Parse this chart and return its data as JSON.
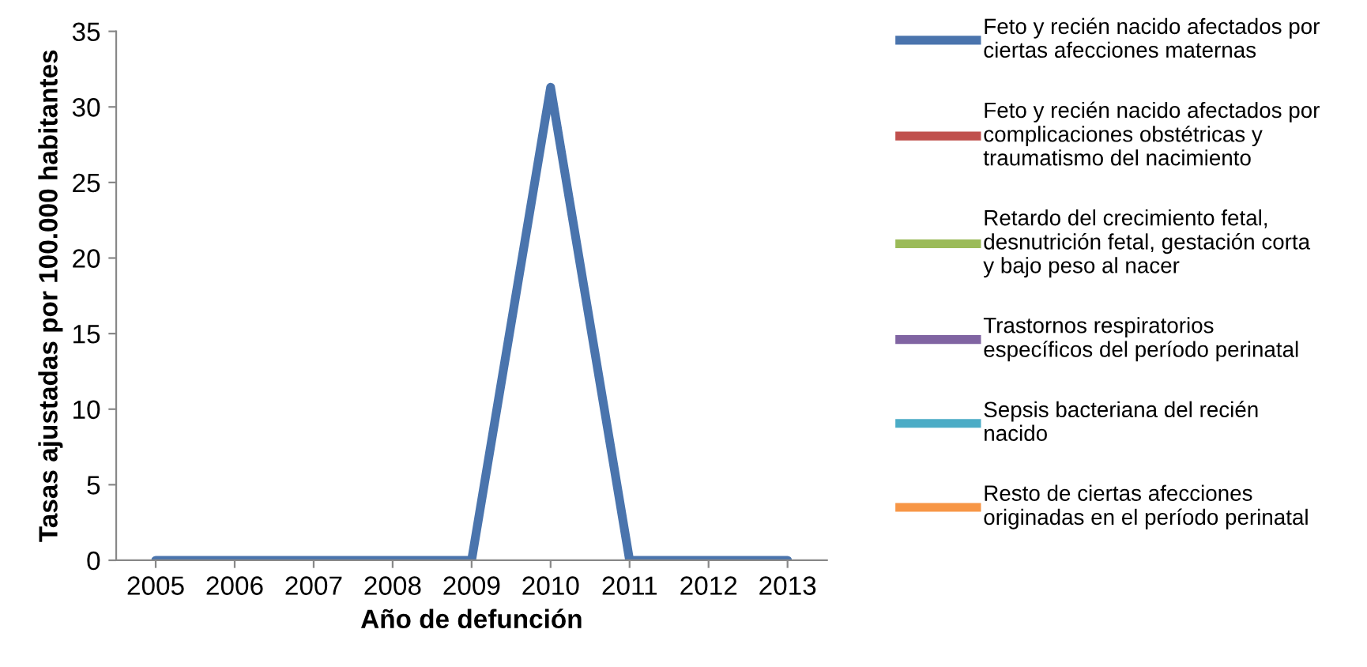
{
  "chart_data": {
    "type": "line",
    "xlabel": "Año de defunción",
    "ylabel": "Tasas ajustadas por 100.000 habitantes",
    "categories": [
      "2005",
      "2006",
      "2007",
      "2008",
      "2009",
      "2010",
      "2011",
      "2012",
      "2013"
    ],
    "ylim": [
      0,
      35
    ],
    "yticks": [
      0,
      5,
      10,
      15,
      20,
      25,
      30,
      35
    ],
    "grid": false,
    "legend": "right",
    "marker": "none",
    "line_style": "solid",
    "series": [
      {
        "name": "Feto y recién nacido afectados por\nciertas afecciones maternas",
        "color": "#4a74ad",
        "values": [
          0,
          0,
          0,
          0,
          0,
          31.3,
          0,
          0,
          0
        ]
      },
      {
        "name": "Feto y recién nacido afectados por\ncomplicaciones obstétricas y\ntraumatismo del nacimiento",
        "color": "#c0504d",
        "values": [
          null,
          null,
          null,
          null,
          null,
          null,
          null,
          null,
          null
        ]
      },
      {
        "name": "Retardo del crecimiento fetal,\ndesnutrición fetal, gestación corta\ny bajo peso al nacer",
        "color": "#9bbb59",
        "values": [
          null,
          null,
          null,
          null,
          null,
          null,
          null,
          null,
          null
        ]
      },
      {
        "name": "Trastornos respiratorios\nespecíficos del período perinatal",
        "color": "#8064a2",
        "values": [
          null,
          null,
          null,
          null,
          null,
          null,
          null,
          null,
          null
        ]
      },
      {
        "name": "Sepsis bacteriana del recién\nnacido",
        "color": "#4bacc6",
        "values": [
          null,
          null,
          null,
          null,
          null,
          null,
          null,
          null,
          null
        ]
      },
      {
        "name": "Resto de ciertas afecciones\noriginadas en el período perinatal",
        "color": "#f79646",
        "values": [
          null,
          null,
          null,
          null,
          null,
          null,
          null,
          null,
          null
        ]
      }
    ]
  }
}
